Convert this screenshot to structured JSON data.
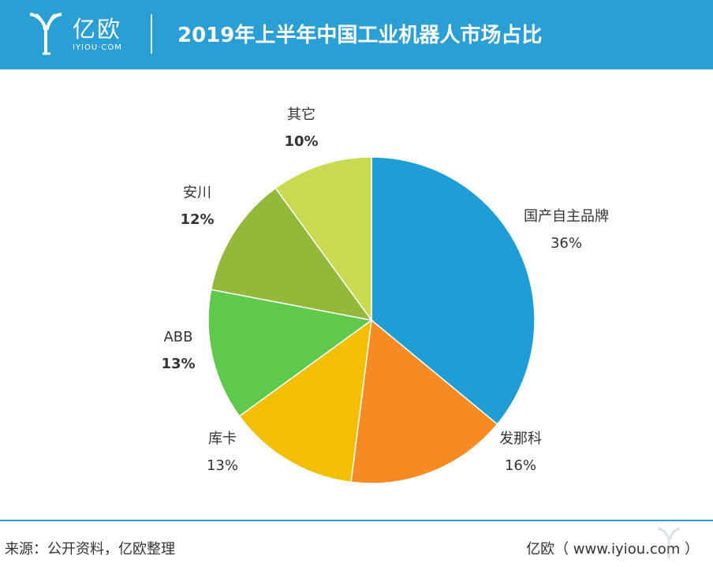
{
  "header": {
    "logo_name": "亿欧",
    "logo_sub": "IYIOU·COM",
    "title": "2019年上半年中国工业机器人市场占比",
    "bg_color": "#2a9fd5"
  },
  "chart_data": {
    "type": "pie",
    "title": "2019年上半年中国工业机器人市场占比",
    "slices": [
      {
        "label": "国产自主品牌",
        "pct": "36%",
        "value": 36,
        "color": "#1f9ed6"
      },
      {
        "label": "发那科",
        "pct": "16%",
        "value": 16,
        "color": "#f68b23"
      },
      {
        "label": "库卡",
        "pct": "13%",
        "value": 13,
        "color": "#f3bf00"
      },
      {
        "label": "ABB",
        "pct": "13%",
        "value": 13,
        "color": "#5ec94b"
      },
      {
        "label": "安川",
        "pct": "12%",
        "value": 12,
        "color": "#93b83a"
      },
      {
        "label": "其它",
        "pct": "10%",
        "value": 10,
        "color": "#c7da50"
      }
    ]
  },
  "footer": {
    "source": "来源：公开资料，亿欧整理",
    "credit": "亿欧（ www.iyiou.com ）"
  }
}
